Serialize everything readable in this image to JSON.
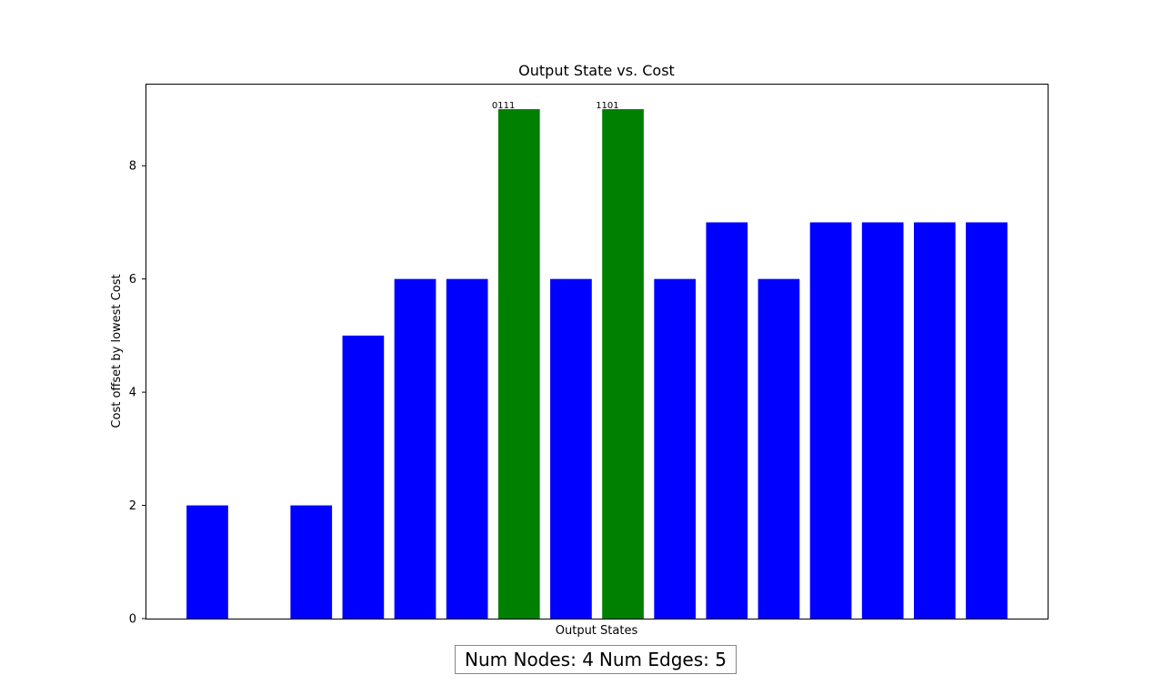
{
  "chart_data": {
    "type": "bar",
    "title": "Output State vs. Cost",
    "xlabel": "Output States",
    "ylabel": "Cost offset by lowest Cost",
    "ylim": [
      0,
      9.45
    ],
    "yticks": [
      0,
      2,
      4,
      6,
      8
    ],
    "grid": false,
    "series": [
      {
        "values": [
          2,
          0,
          2,
          5,
          6,
          6,
          9,
          6,
          9,
          6,
          7,
          6,
          7,
          7,
          7,
          7
        ],
        "colors": [
          "#0000ff",
          "#0000ff",
          "#0000ff",
          "#0000ff",
          "#0000ff",
          "#0000ff",
          "#008000",
          "#0000ff",
          "#008000",
          "#0000ff",
          "#0000ff",
          "#0000ff",
          "#0000ff",
          "#0000ff",
          "#0000ff",
          "#0000ff"
        ],
        "labels": [
          "",
          "",
          "",
          "",
          "",
          "",
          "0111",
          "",
          "1101",
          "",
          "",
          "",
          "",
          "",
          "",
          ""
        ]
      }
    ]
  },
  "caption": {
    "nodes": "Num Nodes: 4",
    "edges": "Num Edges: 5"
  }
}
